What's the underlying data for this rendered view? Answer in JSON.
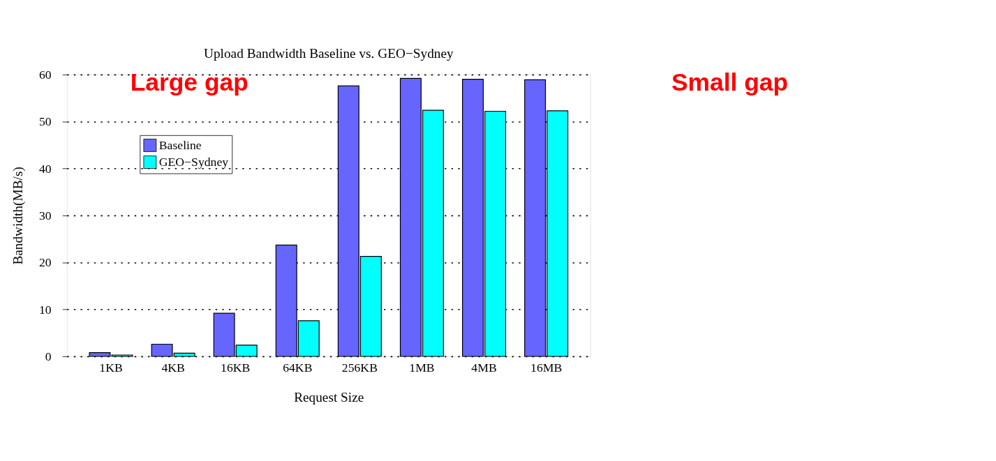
{
  "chart_data": {
    "type": "bar",
    "title": "Upload Bandwidth Baseline vs. GEO−Sydney",
    "xlabel": "Request Size",
    "ylabel": "Bandwidth(MB/s)",
    "categories": [
      "1KB",
      "4KB",
      "16KB",
      "64KB",
      "256KB",
      "1MB",
      "4MB",
      "16MB"
    ],
    "series": [
      {
        "name": "Baseline",
        "color": "#6666ff",
        "values": [
          0.8,
          2.6,
          9.2,
          23.7,
          57.6,
          59.2,
          59.0,
          58.9
        ]
      },
      {
        "name": "GEO−Sydney",
        "color": "#00ffff",
        "values": [
          0.3,
          0.7,
          2.4,
          7.6,
          21.3,
          52.4,
          52.2,
          52.3
        ]
      }
    ],
    "ylim": [
      0,
      60
    ],
    "yticks": [
      0,
      10,
      20,
      30,
      40,
      50,
      60
    ],
    "grid": "y",
    "legend": "top left",
    "annotations": [
      "Large gap",
      "Small gap"
    ]
  }
}
